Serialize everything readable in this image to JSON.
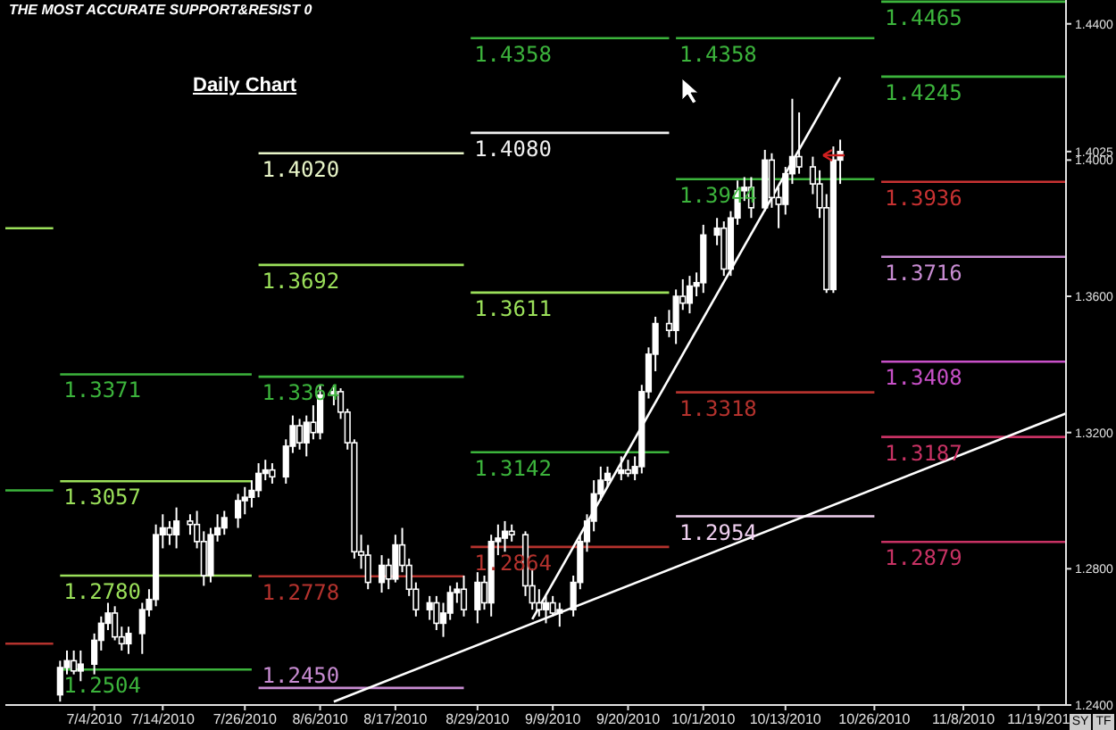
{
  "chart_data": {
    "type": "candlestick",
    "title": "THE MOST ACCURATE SUPPORT&RESIST 0",
    "subtitle": "Daily Chart",
    "annotations": [
      "SY",
      "TF"
    ],
    "color": "#ffffff",
    "x": [
      "2010-06-29",
      "2010-06-30",
      "2010-07-01",
      "2010-07-02",
      "2010-07-04",
      "2010-07-05",
      "2010-07-06",
      "2010-07-07",
      "2010-07-08",
      "2010-07-09",
      "2010-07-11",
      "2010-07-12",
      "2010-07-13",
      "2010-07-14",
      "2010-07-15",
      "2010-07-16",
      "2010-07-18",
      "2010-07-19",
      "2010-07-20",
      "2010-07-21",
      "2010-07-22",
      "2010-07-23",
      "2010-07-25",
      "2010-07-26",
      "2010-07-27",
      "2010-07-28",
      "2010-07-29",
      "2010-07-30",
      "2010-08-01",
      "2010-08-02",
      "2010-08-03",
      "2010-08-04",
      "2010-08-05",
      "2010-08-06",
      "2010-08-08",
      "2010-08-09",
      "2010-08-10",
      "2010-08-11",
      "2010-08-12",
      "2010-08-13",
      "2010-08-15",
      "2010-08-16",
      "2010-08-17",
      "2010-08-18",
      "2010-08-19",
      "2010-08-20",
      "2010-08-22",
      "2010-08-23",
      "2010-08-24",
      "2010-08-25",
      "2010-08-26",
      "2010-08-27",
      "2010-08-29",
      "2010-08-30",
      "2010-08-31",
      "2010-09-01",
      "2010-09-02",
      "2010-09-03",
      "2010-09-05",
      "2010-09-06",
      "2010-09-07",
      "2010-09-08",
      "2010-09-09",
      "2010-09-10",
      "2010-09-12",
      "2010-09-13",
      "2010-09-14",
      "2010-09-15",
      "2010-09-16",
      "2010-09-17",
      "2010-09-19",
      "2010-09-20",
      "2010-09-21",
      "2010-09-22",
      "2010-09-23",
      "2010-09-24",
      "2010-09-26",
      "2010-09-27",
      "2010-09-28",
      "2010-09-29",
      "2010-09-30",
      "2010-10-01",
      "2010-10-03",
      "2010-10-04",
      "2010-10-05",
      "2010-10-06",
      "2010-10-07",
      "2010-10-08",
      "2010-10-10",
      "2010-10-11",
      "2010-10-12",
      "2010-10-13",
      "2010-10-14",
      "2010-10-15",
      "2010-10-17",
      "2010-10-18",
      "2010-10-19",
      "2010-10-20",
      "2010-10-21"
    ],
    "ohlc": [
      [
        1.243,
        1.253,
        1.241,
        1.251
      ],
      [
        1.251,
        1.256,
        1.249,
        1.253
      ],
      [
        1.253,
        1.256,
        1.249,
        1.25
      ],
      [
        1.25,
        1.256,
        1.247,
        1.252
      ],
      [
        1.252,
        1.261,
        1.249,
        1.259
      ],
      [
        1.259,
        1.266,
        1.256,
        1.264
      ],
      [
        1.264,
        1.27,
        1.262,
        1.267
      ],
      [
        1.267,
        1.269,
        1.259,
        1.26
      ],
      [
        1.26,
        1.263,
        1.256,
        1.258
      ],
      [
        1.258,
        1.263,
        1.255,
        1.261
      ],
      [
        1.261,
        1.27,
        1.255,
        1.268
      ],
      [
        1.268,
        1.274,
        1.266,
        1.271
      ],
      [
        1.271,
        1.293,
        1.269,
        1.29
      ],
      [
        1.29,
        1.296,
        1.286,
        1.292
      ],
      [
        1.292,
        1.294,
        1.287,
        1.29
      ],
      [
        1.29,
        1.298,
        1.286,
        1.294
      ],
      [
        1.294,
        1.296,
        1.29,
        1.293
      ],
      [
        1.293,
        1.297,
        1.286,
        1.288
      ],
      [
        1.288,
        1.291,
        1.275,
        1.278
      ],
      [
        1.278,
        1.292,
        1.276,
        1.29
      ],
      [
        1.29,
        1.296,
        1.288,
        1.292
      ],
      [
        1.292,
        1.297,
        1.29,
        1.295
      ],
      [
        1.295,
        1.302,
        1.292,
        1.3
      ],
      [
        1.3,
        1.304,
        1.296,
        1.301
      ],
      [
        1.301,
        1.306,
        1.298,
        1.303
      ],
      [
        1.303,
        1.311,
        1.301,
        1.308
      ],
      [
        1.308,
        1.312,
        1.306,
        1.309
      ],
      [
        1.309,
        1.311,
        1.305,
        1.307
      ],
      [
        1.307,
        1.318,
        1.305,
        1.316
      ],
      [
        1.316,
        1.325,
        1.314,
        1.322
      ],
      [
        1.322,
        1.324,
        1.315,
        1.317
      ],
      [
        1.317,
        1.325,
        1.313,
        1.323
      ],
      [
        1.323,
        1.328,
        1.318,
        1.32
      ],
      [
        1.32,
        1.334,
        1.318,
        1.331
      ],
      [
        1.331,
        1.334,
        1.328,
        1.332
      ],
      [
        1.332,
        1.333,
        1.324,
        1.326
      ],
      [
        1.326,
        1.327,
        1.315,
        1.317
      ],
      [
        1.317,
        1.318,
        1.283,
        1.285
      ],
      [
        1.285,
        1.29,
        1.28,
        1.284
      ],
      [
        1.284,
        1.287,
        1.274,
        1.276
      ],
      [
        1.276,
        1.284,
        1.273,
        1.281
      ],
      [
        1.281,
        1.283,
        1.274,
        1.277
      ],
      [
        1.277,
        1.29,
        1.276,
        1.287
      ],
      [
        1.287,
        1.292,
        1.279,
        1.281
      ],
      [
        1.281,
        1.283,
        1.272,
        1.274
      ],
      [
        1.274,
        1.276,
        1.266,
        1.268
      ],
      [
        1.268,
        1.272,
        1.265,
        1.27
      ],
      [
        1.27,
        1.272,
        1.262,
        1.264
      ],
      [
        1.264,
        1.27,
        1.26,
        1.267
      ],
      [
        1.267,
        1.275,
        1.265,
        1.273
      ],
      [
        1.273,
        1.276,
        1.27,
        1.274
      ],
      [
        1.274,
        1.278,
        1.266,
        1.268
      ],
      [
        1.268,
        1.279,
        1.264,
        1.276
      ],
      [
        1.276,
        1.278,
        1.268,
        1.27
      ],
      [
        1.27,
        1.29,
        1.266,
        1.288
      ],
      [
        1.288,
        1.293,
        1.284,
        1.289
      ],
      [
        1.289,
        1.294,
        1.285,
        1.291
      ],
      [
        1.291,
        1.293,
        1.288,
        1.29
      ],
      [
        1.29,
        1.291,
        1.272,
        1.275
      ],
      [
        1.275,
        1.28,
        1.268,
        1.27
      ],
      [
        1.27,
        1.274,
        1.266,
        1.268
      ],
      [
        1.268,
        1.272,
        1.264,
        1.27
      ],
      [
        1.27,
        1.272,
        1.266,
        1.267
      ],
      [
        1.267,
        1.27,
        1.263,
        1.268
      ],
      [
        1.268,
        1.278,
        1.266,
        1.276
      ],
      [
        1.276,
        1.29,
        1.274,
        1.288
      ],
      [
        1.288,
        1.296,
        1.285,
        1.294
      ],
      [
        1.294,
        1.306,
        1.291,
        1.302
      ],
      [
        1.302,
        1.31,
        1.3,
        1.306
      ],
      [
        1.306,
        1.31,
        1.304,
        1.308
      ],
      [
        1.308,
        1.313,
        1.306,
        1.309
      ],
      [
        1.309,
        1.312,
        1.307,
        1.308
      ],
      [
        1.308,
        1.313,
        1.306,
        1.31
      ],
      [
        1.31,
        1.334,
        1.308,
        1.332
      ],
      [
        1.332,
        1.345,
        1.33,
        1.343
      ],
      [
        1.343,
        1.354,
        1.338,
        1.352
      ],
      [
        1.352,
        1.356,
        1.348,
        1.35
      ],
      [
        1.35,
        1.362,
        1.346,
        1.36
      ],
      [
        1.36,
        1.365,
        1.356,
        1.358
      ],
      [
        1.358,
        1.366,
        1.355,
        1.363
      ],
      [
        1.363,
        1.367,
        1.36,
        1.364
      ],
      [
        1.364,
        1.381,
        1.361,
        1.378
      ],
      [
        1.378,
        1.383,
        1.375,
        1.38
      ],
      [
        1.38,
        1.382,
        1.366,
        1.368
      ],
      [
        1.368,
        1.385,
        1.366,
        1.383
      ],
      [
        1.383,
        1.394,
        1.381,
        1.391
      ],
      [
        1.391,
        1.395,
        1.388,
        1.392
      ],
      [
        1.392,
        1.395,
        1.383,
        1.386
      ],
      [
        1.386,
        1.403,
        1.385,
        1.4
      ],
      [
        1.4,
        1.402,
        1.386,
        1.389
      ],
      [
        1.389,
        1.392,
        1.38,
        1.387
      ],
      [
        1.387,
        1.398,
        1.384,
        1.396
      ],
      [
        1.396,
        1.418,
        1.393,
        1.401
      ],
      [
        1.401,
        1.414,
        1.396,
        1.398
      ],
      [
        1.398,
        1.401,
        1.39,
        1.393
      ],
      [
        1.393,
        1.397,
        1.383,
        1.386
      ],
      [
        1.386,
        1.39,
        1.361,
        1.362
      ],
      [
        1.362,
        1.404,
        1.361,
        1.4
      ],
      [
        1.4,
        1.406,
        1.393,
        1.4025
      ]
    ],
    "series": [
      {
        "type": "line",
        "color": "#9be05a",
        "x": [
          "2010-06-21",
          "2010-06-28"
        ],
        "values": [
          1.38,
          1.38
        ]
      },
      {
        "type": "line",
        "color": "#3cb43c",
        "x": [
          "2010-06-21",
          "2010-06-28"
        ],
        "values": [
          1.303,
          1.303
        ]
      },
      {
        "type": "line",
        "color": "#b4322d",
        "x": [
          "2010-06-21",
          "2010-06-28"
        ],
        "values": [
          1.258,
          1.258
        ]
      },
      {
        "type": "line",
        "name": "1.3371",
        "color": "#3cb43c",
        "x": [
          "2010-06-29",
          "2010-07-27"
        ],
        "values": [
          1.3371,
          1.3371
        ]
      },
      {
        "type": "line",
        "name": "1.3057",
        "color": "#9be05a",
        "x": [
          "2010-06-29",
          "2010-07-27"
        ],
        "values": [
          1.3057,
          1.3057
        ]
      },
      {
        "type": "line",
        "name": "1.2780",
        "color": "#9be05a",
        "x": [
          "2010-06-29",
          "2010-07-27"
        ],
        "values": [
          1.278,
          1.278
        ]
      },
      {
        "type": "line",
        "name": "1.2504",
        "color": "#3cb43c",
        "x": [
          "2010-06-29",
          "2010-07-27"
        ],
        "values": [
          1.2504,
          1.2504
        ]
      },
      {
        "type": "line",
        "name": "1.4020",
        "color": "#e8f5c8",
        "x": [
          "2010-07-28",
          "2010-08-27"
        ],
        "values": [
          1.402,
          1.402
        ]
      },
      {
        "type": "line",
        "name": "1.3692",
        "color": "#9be05a",
        "x": [
          "2010-07-28",
          "2010-08-27"
        ],
        "values": [
          1.3692,
          1.3692
        ]
      },
      {
        "type": "line",
        "name": "1.3364",
        "color": "#3cb43c",
        "x": [
          "2010-07-28",
          "2010-08-27"
        ],
        "values": [
          1.3364,
          1.3364
        ]
      },
      {
        "type": "line",
        "name": "1.2778",
        "color": "#b4322d",
        "x": [
          "2010-07-28",
          "2010-08-27"
        ],
        "values": [
          1.2778,
          1.2778
        ]
      },
      {
        "type": "line",
        "name": "1.2450",
        "color": "#c88cd2",
        "x": [
          "2010-07-28",
          "2010-08-27"
        ],
        "values": [
          1.245,
          1.245
        ]
      },
      {
        "type": "line",
        "name": "1.4358",
        "color": "#3cb43c",
        "x": [
          "2010-08-28",
          "2010-09-26"
        ],
        "values": [
          1.4358,
          1.4358
        ]
      },
      {
        "type": "line",
        "name": "1.4080",
        "color": "#f0f0f0",
        "x": [
          "2010-08-28",
          "2010-09-26"
        ],
        "values": [
          1.408,
          1.408
        ]
      },
      {
        "type": "line",
        "name": "1.3611",
        "color": "#9be05a",
        "x": [
          "2010-08-28",
          "2010-09-26"
        ],
        "values": [
          1.3611,
          1.3611
        ]
      },
      {
        "type": "line",
        "name": "1.3142",
        "color": "#3cb43c",
        "x": [
          "2010-08-28",
          "2010-09-26"
        ],
        "values": [
          1.3142,
          1.3142
        ]
      },
      {
        "type": "line",
        "name": "1.2864",
        "color": "#b4322d",
        "x": [
          "2010-08-28",
          "2010-09-26"
        ],
        "values": [
          1.2864,
          1.2864
        ]
      },
      {
        "type": "line",
        "name": "1.4358",
        "color": "#3cb43c",
        "x": [
          "2010-09-27",
          "2010-10-26"
        ],
        "values": [
          1.4358,
          1.4358
        ]
      },
      {
        "type": "line",
        "name": "1.3944",
        "color": "#3cb43c",
        "x": [
          "2010-09-27",
          "2010-10-26"
        ],
        "values": [
          1.3944,
          1.3944
        ]
      },
      {
        "type": "line",
        "name": "1.3318",
        "color": "#b4322d",
        "x": [
          "2010-09-27",
          "2010-10-26"
        ],
        "values": [
          1.3318,
          1.3318
        ]
      },
      {
        "type": "line",
        "name": "1.2954",
        "color": "#f0d0f0",
        "x": [
          "2010-09-27",
          "2010-10-26"
        ],
        "values": [
          1.2954,
          1.2954
        ]
      },
      {
        "type": "line",
        "name": "1.4465",
        "color": "#3cb43c",
        "x": [
          "2010-10-27",
          "2010-11-23"
        ],
        "values": [
          1.4465,
          1.4465
        ]
      },
      {
        "type": "line",
        "name": "1.4245",
        "color": "#3cb43c",
        "x": [
          "2010-10-27",
          "2010-11-23"
        ],
        "values": [
          1.4245,
          1.4245
        ]
      },
      {
        "type": "line",
        "name": "1.3936",
        "color": "#c83232",
        "x": [
          "2010-10-27",
          "2010-11-23"
        ],
        "values": [
          1.3936,
          1.3936
        ]
      },
      {
        "type": "line",
        "name": "1.3716",
        "color": "#c88cd2",
        "x": [
          "2010-10-27",
          "2010-11-23"
        ],
        "values": [
          1.3716,
          1.3716
        ]
      },
      {
        "type": "line",
        "name": "1.3408",
        "color": "#c850c8",
        "x": [
          "2010-10-27",
          "2010-11-23"
        ],
        "values": [
          1.3408,
          1.3408
        ]
      },
      {
        "type": "line",
        "name": "1.3187",
        "color": "#c83264",
        "x": [
          "2010-10-27",
          "2010-11-23"
        ],
        "values": [
          1.3187,
          1.3187
        ]
      },
      {
        "type": "line",
        "name": "1.2879",
        "color": "#c83264",
        "x": [
          "2010-10-27",
          "2010-11-23"
        ],
        "values": [
          1.2879,
          1.2879
        ]
      },
      {
        "type": "line",
        "color": "#ffffff",
        "x": [
          "2010-08-08",
          "2010-11-23"
        ],
        "values": [
          1.241,
          1.3256
        ]
      },
      {
        "type": "line",
        "color": "#ffffff",
        "x": [
          "2010-09-06",
          "2010-10-21"
        ],
        "values": [
          1.2652,
          1.4243
        ]
      }
    ],
    "xlim": [
      "2010-06-21",
      "2010-11-23"
    ],
    "xticks": [
      {
        "value": "2010-07-04",
        "label": "7/4/2010"
      },
      {
        "value": "2010-07-14",
        "label": "7/14/2010"
      },
      {
        "value": "2010-07-26",
        "label": "7/26/2010"
      },
      {
        "value": "2010-08-06",
        "label": "8/6/2010"
      },
      {
        "value": "2010-08-17",
        "label": "8/17/2010"
      },
      {
        "value": "2010-08-29",
        "label": "8/29/2010"
      },
      {
        "value": "2010-09-09",
        "label": "9/9/2010"
      },
      {
        "value": "2010-09-20",
        "label": "9/20/2010"
      },
      {
        "value": "2010-10-01",
        "label": "10/1/2010"
      },
      {
        "value": "2010-10-13",
        "label": "10/13/2010"
      },
      {
        "value": "2010-10-26",
        "label": "10/26/2010"
      },
      {
        "value": "2010-11-08",
        "label": "11/8/2010"
      },
      {
        "value": "2010-11-19",
        "label": "11/19/201"
      }
    ],
    "ylim": [
      1.24,
      1.447
    ],
    "yticks": [
      {
        "value": 1.24,
        "label": "1.2400"
      },
      {
        "value": 1.28,
        "label": "1.2800"
      },
      {
        "value": 1.32,
        "label": "1.3200"
      },
      {
        "value": 1.36,
        "label": "1.3600"
      },
      {
        "value": 1.4,
        "label": "1.4000"
      },
      {
        "value": 1.4025,
        "label": "1.4025"
      },
      {
        "value": 1.44,
        "label": "1.4400"
      }
    ]
  }
}
